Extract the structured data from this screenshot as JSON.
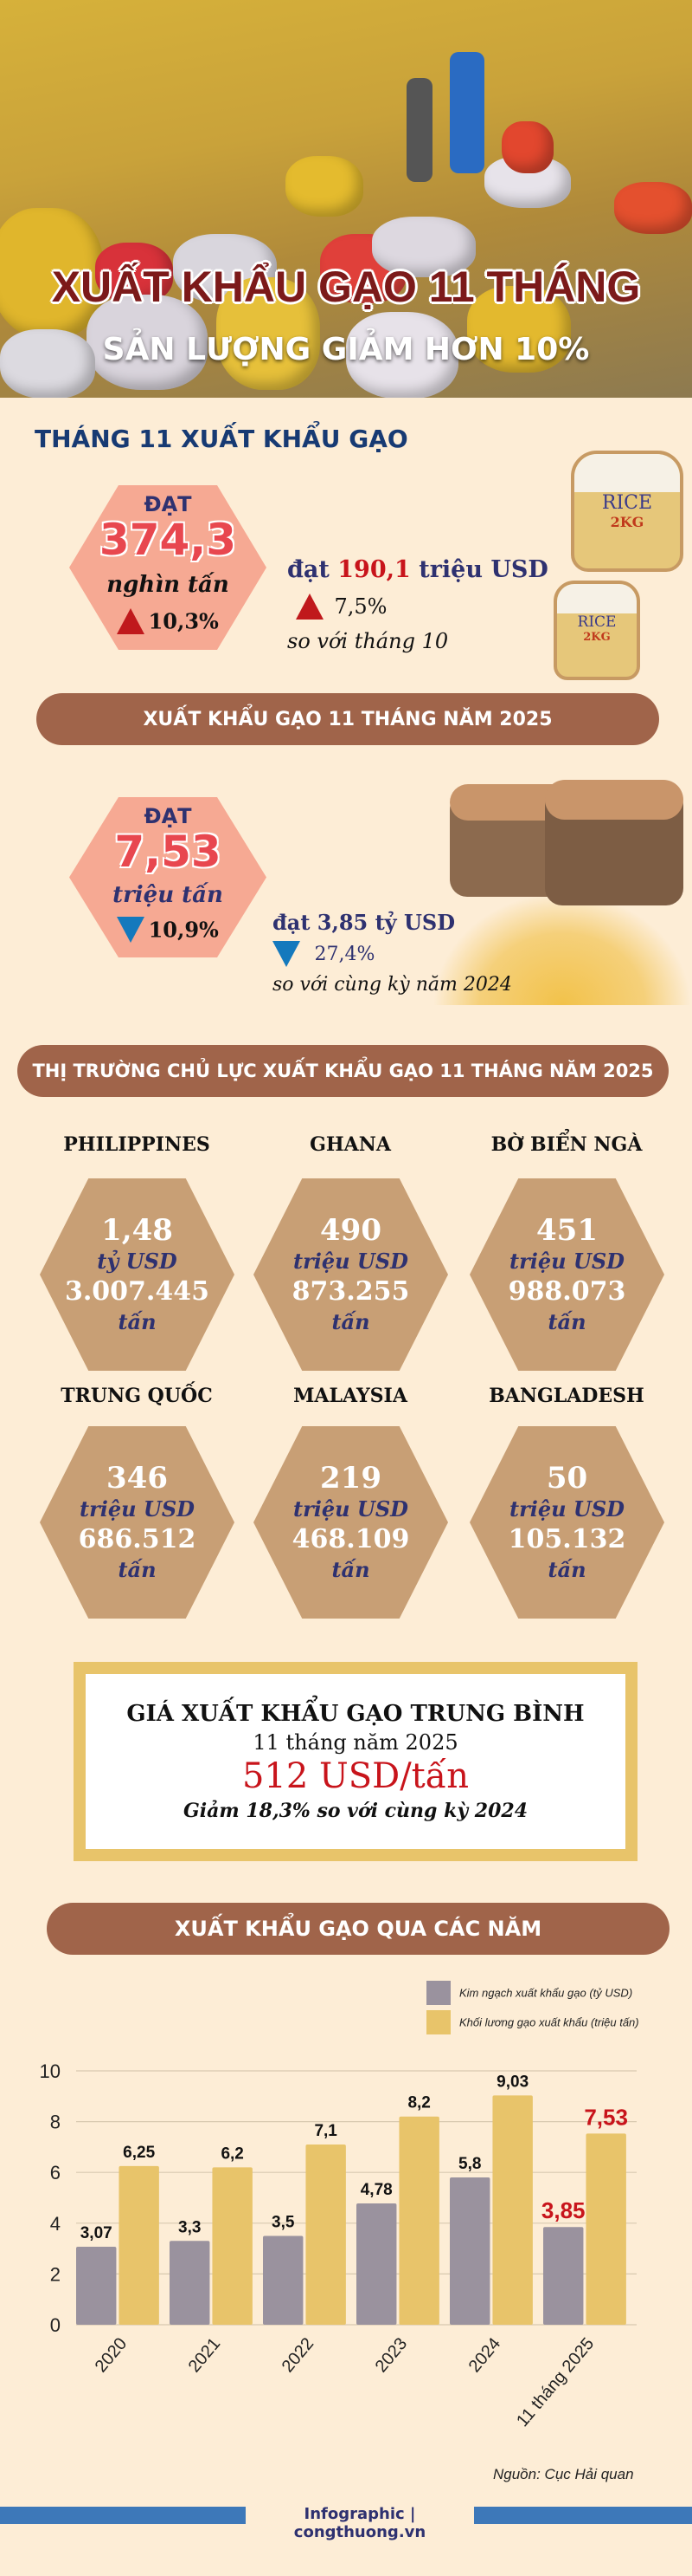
{
  "hero": {
    "title": "XUẤT KHẨU GẠO 11 THÁNG",
    "subtitle": "SẢN LƯỢNG GIẢM HƠN 10%"
  },
  "month11": {
    "heading": "THÁNG 11 XUẤT KHẨU GẠO",
    "dat_label": "ĐẠT",
    "volume": "374,3",
    "volume_unit": "nghìn tấn",
    "volume_change": "10,3%",
    "volume_trend": "up",
    "value_prefix": "đạt",
    "value": "190,1",
    "value_unit": "triệu USD",
    "value_change": "7,5%",
    "value_trend": "up",
    "compare": "so với tháng 10",
    "bag_label": "RICE",
    "bag_weight": "2KG"
  },
  "elevenMonths": {
    "heading": "XUẤT KHẨU GẠO 11 THÁNG NĂM 2025",
    "dat_label": "ĐẠT",
    "volume": "7,53",
    "volume_unit": "triệu tấn",
    "volume_change": "10,9%",
    "volume_trend": "down",
    "value_text": "đạt 3,85 tỷ USD",
    "value_change": "27,4%",
    "value_trend": "down",
    "compare": "so với cùng kỳ năm 2024"
  },
  "markets": {
    "heading": "THỊ TRƯỜNG CHỦ LỰC XUẤT KHẨU GẠO 11 THÁNG NĂM 2025",
    "items": [
      {
        "country": "PHILIPPINES",
        "value": "1,48",
        "value_unit": "tỷ USD",
        "tons": "3.007.445",
        "tons_unit": "tấn"
      },
      {
        "country": "GHANA",
        "value": "490",
        "value_unit": "triệu USD",
        "tons": "873.255",
        "tons_unit": "tấn"
      },
      {
        "country": "BỜ BIỂN NGÀ",
        "value": "451",
        "value_unit": "triệu USD",
        "tons": "988.073",
        "tons_unit": "tấn"
      },
      {
        "country": "TRUNG QUỐC",
        "value": "346",
        "value_unit": "triệu USD",
        "tons": "686.512",
        "tons_unit": "tấn"
      },
      {
        "country": "MALAYSIA",
        "value": "219",
        "value_unit": "triệu USD",
        "tons": "468.109",
        "tons_unit": "tấn"
      },
      {
        "country": "BANGLADESH",
        "value": "50",
        "value_unit": "triệu USD",
        "tons": "105.132",
        "tons_unit": "tấn"
      }
    ]
  },
  "price": {
    "title": "GIÁ XUẤT KHẨU GẠO TRUNG BÌNH",
    "period": "11 tháng năm 2025",
    "value": "512 USD/tấn",
    "change": "Giảm 18,3% so với cùng kỳ 2024"
  },
  "chart_section": {
    "heading": "XUẤT KHẨU GẠO QUA CÁC NĂM"
  },
  "chart_data": {
    "type": "bar",
    "categories": [
      "2020",
      "2021",
      "2022",
      "2023",
      "2024",
      "11 tháng 2025"
    ],
    "series": [
      {
        "name": "Kim ngạch xuất khẩu gạo (tỷ USD)",
        "color": "#9A929E",
        "values": [
          3.07,
          3.3,
          3.5,
          4.78,
          5.8,
          3.85
        ]
      },
      {
        "name": "Khối lương gạo xuất khẩu (triệu tấn)",
        "color": "#E8C46A",
        "values": [
          6.25,
          6.2,
          7.1,
          8.2,
          9.03,
          7.53
        ]
      }
    ],
    "yticks": [
      "0",
      "2",
      "4",
      "6",
      "8",
      "10"
    ],
    "ylim": [
      0,
      10
    ],
    "grid": true,
    "legend": "top-right",
    "highlight_color": "#C8141B",
    "xlabel": "",
    "ylabel": "",
    "title": ""
  },
  "source": "Nguồn: Cục Hải quan",
  "footer": "Infographic | congthuong.vn"
}
